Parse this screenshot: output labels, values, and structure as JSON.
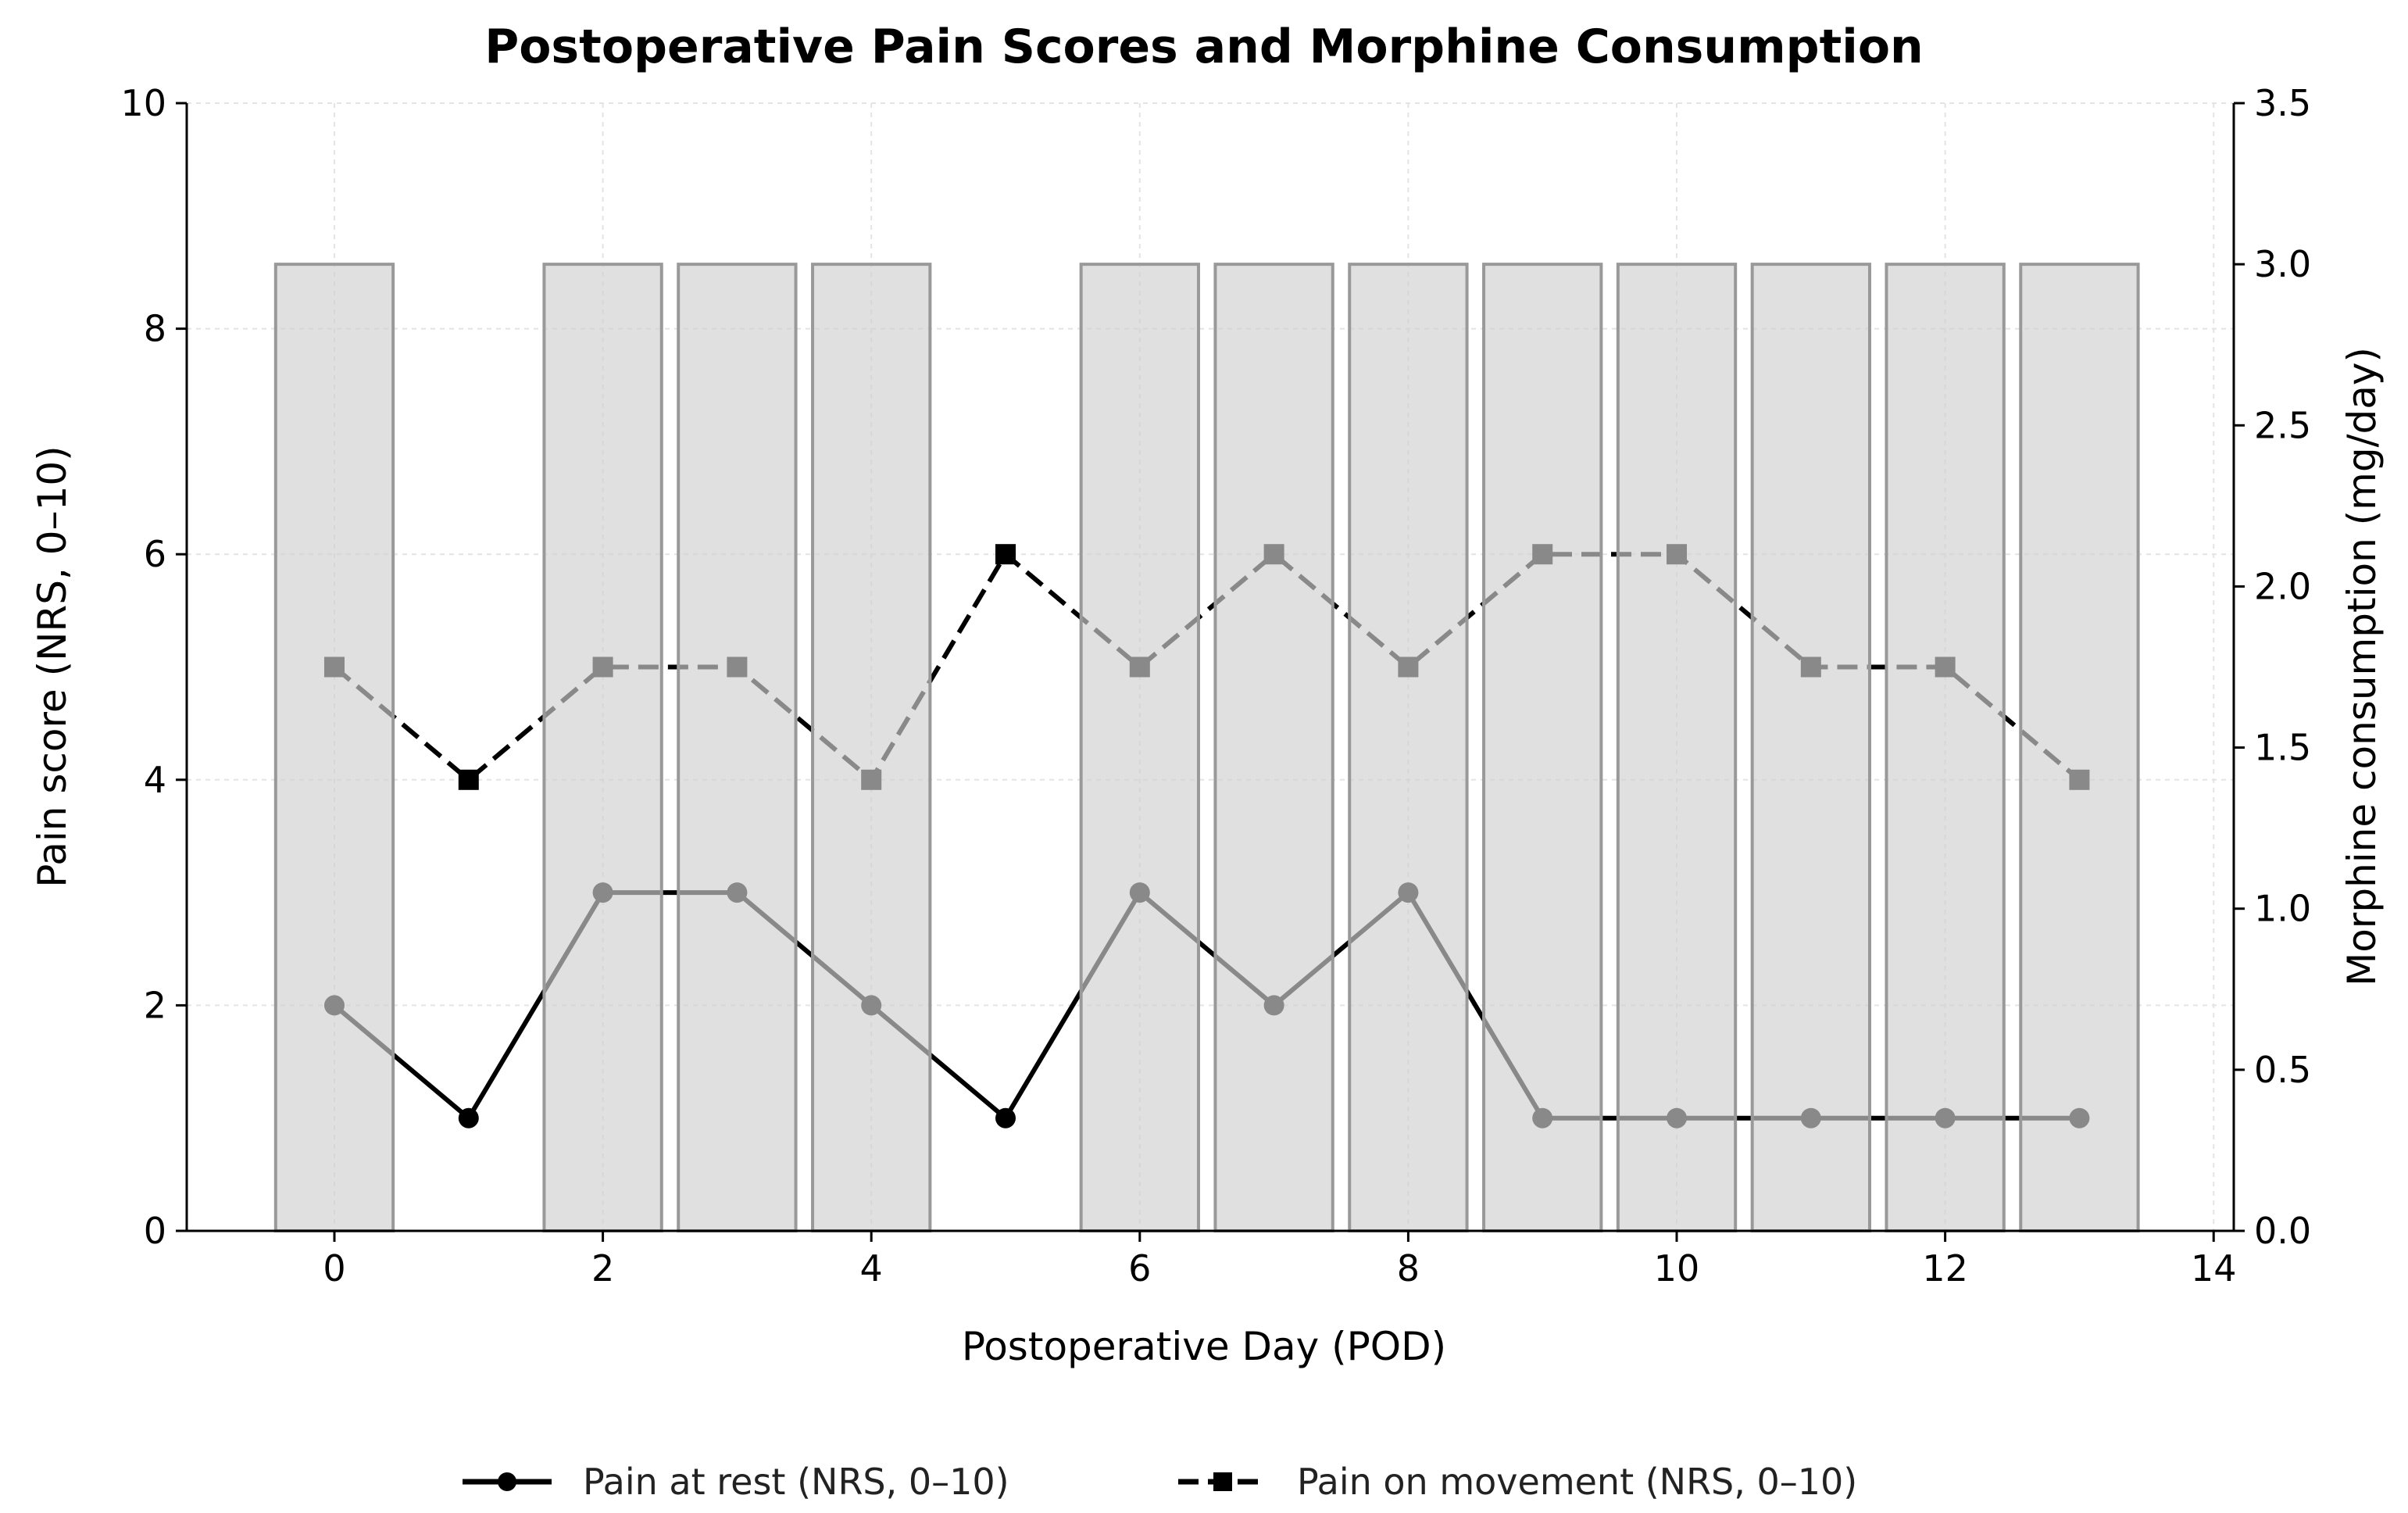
{
  "chart_data": {
    "type": "bar+line",
    "title": "Postoperative Pain Scores and Morphine Consumption",
    "xlabel": "Postoperative Day (POD)",
    "ylabel": "Pain score (NRS, 0–10)",
    "y2label": "Morphine consumption (mg/day)",
    "xlim": [
      -1.1,
      14.15
    ],
    "ylim": [
      0,
      10
    ],
    "y2lim": [
      0,
      3.5
    ],
    "xticks": [
      0,
      2,
      4,
      6,
      8,
      10,
      12,
      14
    ],
    "yticks": [
      0,
      2,
      4,
      6,
      8,
      10
    ],
    "y2ticks": [
      "0.0",
      "0.5",
      "1.0",
      "1.5",
      "2.0",
      "2.5",
      "3.0",
      "3.5"
    ],
    "grid": true,
    "legend_placement": "bottom-center",
    "x": [
      0,
      1,
      2,
      3,
      4,
      5,
      6,
      7,
      8,
      9,
      10,
      11,
      12,
      13
    ],
    "bars": {
      "axis": "right",
      "values": [
        3,
        0,
        3,
        3,
        3,
        0,
        3,
        3,
        3,
        3,
        3,
        3,
        3,
        3
      ],
      "color": "#d0d0d0",
      "edge": "#999999"
    },
    "series": [
      {
        "name": "Pain at rest (NRS, 0–10)",
        "values": [
          2,
          1,
          3,
          3,
          2,
          1,
          3,
          2,
          3,
          1,
          1,
          1,
          1,
          1
        ],
        "marker": "circle",
        "linestyle": "solid",
        "color": "#000000"
      },
      {
        "name": "Pain on movement (NRS, 0–10)",
        "values": [
          5,
          4,
          5,
          5,
          4,
          6,
          5,
          6,
          5,
          6,
          6,
          5,
          5,
          4
        ],
        "marker": "square",
        "linestyle": "dashed",
        "color": "#000000"
      }
    ]
  }
}
